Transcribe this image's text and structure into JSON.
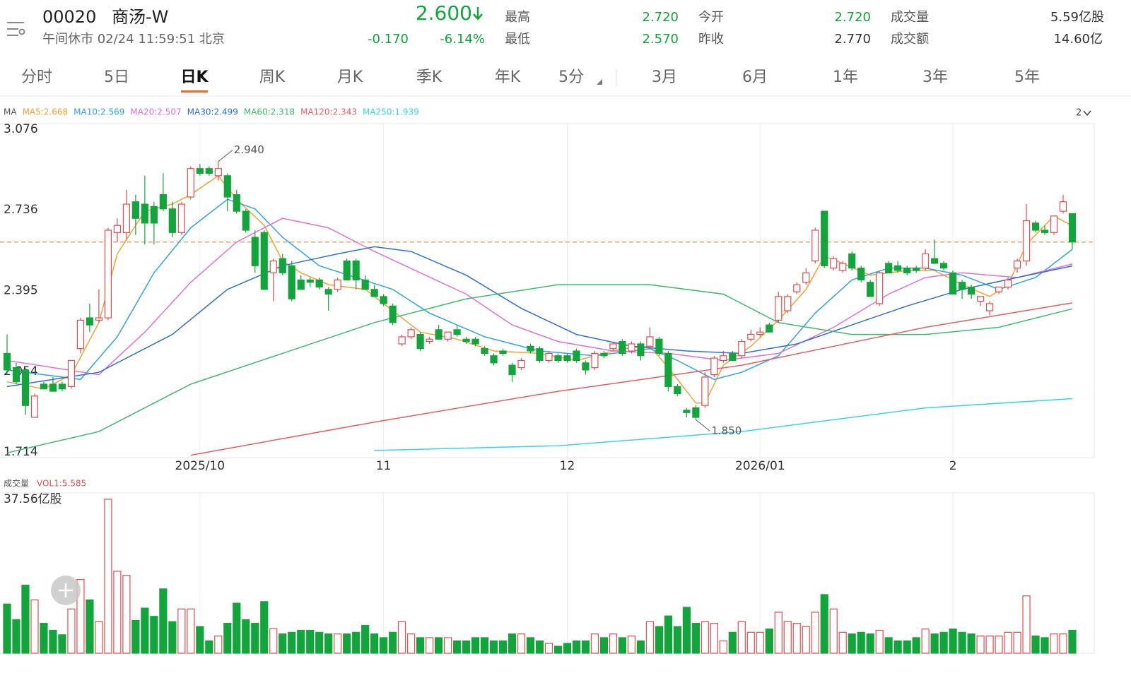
{
  "header": {
    "code": "00020",
    "name": "商汤-W",
    "status": "午间休市 02/24 11:59:51 北京",
    "price": "2.600",
    "change": "-0.170",
    "change_pct": "-6.14%",
    "stats": [
      {
        "label": "最高",
        "value": "2.720"
      },
      {
        "label": "最低",
        "value": "2.570"
      },
      {
        "label": "今开",
        "value": "2.720"
      },
      {
        "label": "昨收",
        "value": "2.770"
      },
      {
        "label": "成交量",
        "value": "5.59亿股"
      },
      {
        "label": "成交额",
        "value": "14.60亿"
      }
    ]
  },
  "tabs": [
    "分时",
    "5日",
    "日K",
    "周K",
    "月K",
    "季K",
    "年K",
    "5分",
    "3月",
    "6月",
    "1年",
    "3年",
    "5年"
  ],
  "active_tab": 2,
  "chart_data": [
    {
      "type": "candlestick",
      "legend_title": "MA",
      "layout_label": "2",
      "categories": [
        null,
        null,
        null,
        null,
        null,
        null,
        null,
        null,
        null,
        null,
        null,
        null,
        null,
        null,
        null,
        null,
        null,
        null,
        null,
        null,
        null,
        "2025/10",
        null,
        null,
        null,
        null,
        null,
        null,
        null,
        null,
        null,
        null,
        null,
        null,
        null,
        null,
        null,
        null,
        null,
        null,
        null,
        "11",
        null,
        null,
        null,
        null,
        null,
        null,
        null,
        null,
        null,
        null,
        null,
        null,
        null,
        null,
        null,
        null,
        null,
        null,
        null,
        "12",
        null,
        null,
        null,
        null,
        null,
        null,
        null,
        null,
        null,
        null,
        null,
        null,
        null,
        null,
        null,
        null,
        null,
        null,
        null,
        null,
        "2026/01",
        null,
        null,
        null,
        null,
        null,
        null,
        null,
        null,
        null,
        null,
        null,
        null,
        null,
        null,
        null,
        null,
        null,
        null,
        null,
        null,
        "2",
        null,
        null,
        null,
        null,
        null,
        null,
        null,
        null,
        null,
        null,
        null,
        null,
        null
      ],
      "open": [
        2.13,
        2.07,
        2.06,
        1.86,
        2.0,
        2.0,
        2.0,
        1.99,
        2.15,
        2.28,
        2.27,
        2.28,
        2.64,
        2.64,
        2.77,
        2.76,
        2.75,
        2.8,
        2.74,
        2.64,
        2.79,
        2.91,
        2.91,
        2.88,
        2.88,
        2.8,
        2.73,
        2.62,
        2.64,
        2.47,
        2.53,
        2.5,
        2.44,
        2.44,
        2.44,
        2.4,
        2.4,
        2.52,
        2.52,
        2.44,
        2.4,
        2.37,
        2.33,
        2.17,
        2.2,
        2.21,
        2.18,
        2.23,
        2.19,
        2.23,
        2.19,
        2.19,
        2.15,
        2.12,
        2.14,
        2.08,
        2.07,
        2.16,
        2.15,
        2.1,
        2.12,
        2.12,
        2.14,
        2.09,
        2.07,
        2.13,
        2.15,
        2.18,
        2.14,
        2.17,
        2.16,
        2.19,
        2.13,
        1.99,
        1.89,
        1.9,
        1.91,
        2.04,
        2.1,
        2.13,
        2.12,
        2.19,
        2.21,
        2.25,
        2.27,
        2.31,
        2.39,
        2.43,
        2.52,
        2.73,
        2.49,
        2.48,
        2.55,
        2.49,
        2.43,
        2.34,
        2.51,
        2.5,
        2.49,
        2.49,
        2.49,
        2.53,
        2.51,
        2.47,
        2.43,
        2.41,
        2.35,
        2.31,
        2.39,
        2.41,
        2.49,
        2.52,
        2.68,
        2.65,
        2.64,
        2.73,
        2.72
      ],
      "high": [
        2.21,
        2.09,
        2.07,
        1.96,
        2.01,
        2.03,
        2.01,
        2.1,
        2.28,
        2.34,
        2.4,
        2.66,
        2.7,
        2.82,
        2.8,
        2.88,
        2.77,
        2.89,
        2.77,
        2.77,
        2.92,
        2.93,
        2.92,
        2.94,
        2.89,
        2.82,
        2.74,
        2.65,
        2.65,
        2.53,
        2.55,
        2.52,
        2.46,
        2.45,
        2.45,
        2.41,
        2.45,
        2.53,
        2.53,
        2.46,
        2.42,
        2.38,
        2.34,
        2.21,
        2.24,
        2.22,
        2.2,
        2.25,
        2.22,
        2.25,
        2.2,
        2.2,
        2.16,
        2.13,
        2.15,
        2.09,
        2.11,
        2.17,
        2.16,
        2.14,
        2.13,
        2.13,
        2.15,
        2.1,
        2.14,
        2.14,
        2.18,
        2.19,
        2.18,
        2.18,
        2.24,
        2.2,
        2.14,
        2.0,
        1.9,
        1.91,
        2.05,
        2.12,
        2.14,
        2.14,
        2.19,
        2.23,
        2.24,
        2.26,
        2.39,
        2.38,
        2.43,
        2.49,
        2.66,
        2.73,
        2.54,
        2.52,
        2.56,
        2.5,
        2.44,
        2.48,
        2.52,
        2.52,
        2.5,
        2.5,
        2.57,
        2.61,
        2.52,
        2.48,
        2.44,
        2.42,
        2.37,
        2.35,
        2.41,
        2.45,
        2.53,
        2.76,
        2.69,
        2.67,
        2.71,
        2.8,
        2.72
      ],
      "low": [
        2.04,
        2.0,
        1.87,
        1.86,
        1.98,
        1.97,
        1.97,
        1.98,
        2.13,
        2.22,
        2.26,
        2.27,
        2.6,
        2.61,
        2.63,
        2.59,
        2.59,
        2.73,
        2.62,
        2.63,
        2.78,
        2.88,
        2.88,
        2.86,
        2.73,
        2.72,
        2.64,
        2.47,
        2.4,
        2.35,
        2.46,
        2.35,
        2.4,
        2.41,
        2.4,
        2.31,
        2.39,
        2.44,
        2.4,
        2.4,
        2.37,
        2.33,
        2.25,
        2.16,
        2.19,
        2.14,
        2.17,
        2.19,
        2.18,
        2.2,
        2.17,
        2.16,
        2.12,
        2.08,
        2.12,
        2.01,
        2.06,
        2.13,
        2.09,
        2.09,
        2.09,
        2.09,
        2.09,
        2.04,
        2.06,
        2.11,
        2.14,
        2.12,
        2.13,
        2.1,
        2.15,
        2.12,
        1.97,
        1.95,
        1.86,
        1.85,
        1.9,
        2.03,
        2.09,
        2.1,
        2.11,
        2.18,
        2.2,
        2.22,
        2.26,
        2.3,
        2.38,
        2.42,
        2.51,
        2.49,
        2.48,
        2.47,
        2.48,
        2.43,
        2.37,
        2.33,
        2.47,
        2.47,
        2.46,
        2.47,
        2.48,
        2.51,
        2.48,
        2.38,
        2.36,
        2.36,
        2.33,
        2.29,
        2.38,
        2.4,
        2.47,
        2.5,
        2.64,
        2.63,
        2.63,
        2.72,
        2.57
      ],
      "close": [
        2.06,
        2.01,
        1.91,
        1.95,
        1.98,
        1.97,
        1.98,
        2.1,
        2.27,
        2.25,
        2.28,
        2.65,
        2.67,
        2.76,
        2.7,
        2.68,
        2.68,
        2.74,
        2.64,
        2.76,
        2.91,
        2.89,
        2.89,
        2.91,
        2.79,
        2.73,
        2.65,
        2.5,
        2.4,
        2.52,
        2.47,
        2.36,
        2.4,
        2.43,
        2.41,
        2.38,
        2.44,
        2.44,
        2.44,
        2.4,
        2.37,
        2.34,
        2.26,
        2.2,
        2.23,
        2.15,
        2.19,
        2.19,
        2.22,
        2.21,
        2.18,
        2.17,
        2.13,
        2.09,
        2.13,
        2.04,
        2.1,
        2.14,
        2.1,
        2.13,
        2.1,
        2.1,
        2.1,
        2.06,
        2.13,
        2.12,
        2.17,
        2.13,
        2.17,
        2.12,
        2.2,
        2.13,
        1.99,
        1.96,
        1.88,
        1.86,
        2.03,
        2.11,
        2.12,
        2.1,
        2.18,
        2.21,
        2.22,
        2.22,
        2.37,
        2.37,
        2.42,
        2.47,
        2.65,
        2.5,
        2.53,
        2.51,
        2.49,
        2.44,
        2.37,
        2.47,
        2.47,
        2.48,
        2.47,
        2.48,
        2.55,
        2.51,
        2.49,
        2.38,
        2.4,
        2.38,
        2.37,
        2.34,
        2.41,
        2.44,
        2.52,
        2.69,
        2.65,
        2.64,
        2.71,
        2.77,
        2.6
      ],
      "up_color": "#e94b4b",
      "down_color": "#12a53c",
      "ylim": [
        1.69,
        3.1
      ],
      "yticks": [
        1.714,
        2.054,
        2.395,
        2.736,
        3.076
      ],
      "grid": false,
      "price_line": 2.6,
      "price_line_color": "#f2a36b",
      "annotations": [
        {
          "x": 23,
          "value": 2.94,
          "label": "2.940"
        },
        {
          "x": 75,
          "value": 1.85,
          "label": "1.850"
        }
      ],
      "series": [
        {
          "name": "MA5:2.668",
          "color": "#f5a030",
          "x": [
            0,
            4,
            7,
            10,
            12,
            15,
            18,
            20,
            23,
            25,
            28,
            30,
            32,
            35,
            39,
            42,
            45,
            49,
            53,
            58,
            62,
            67,
            70,
            72,
            75,
            76,
            78,
            81,
            84,
            87,
            89,
            91,
            94,
            98,
            101,
            104,
            107,
            109,
            111,
            114,
            116
          ],
          "values": [
            2.01,
            1.98,
            2.04,
            2.26,
            2.55,
            2.73,
            2.76,
            2.8,
            2.88,
            2.78,
            2.67,
            2.52,
            2.47,
            2.42,
            2.4,
            2.31,
            2.22,
            2.19,
            2.14,
            2.13,
            2.1,
            2.15,
            2.16,
            2.07,
            1.92,
            1.92,
            2.08,
            2.16,
            2.27,
            2.4,
            2.54,
            2.51,
            2.46,
            2.48,
            2.48,
            2.42,
            2.37,
            2.42,
            2.59,
            2.71,
            2.668
          ]
        },
        {
          "name": "MA10:2.569",
          "color": "#2ea3e8",
          "x": [
            0,
            8,
            12,
            16,
            20,
            24,
            27,
            30,
            34,
            38,
            42,
            46,
            52,
            58,
            64,
            70,
            73,
            77,
            80,
            84,
            88,
            92,
            96,
            100,
            104,
            108,
            112,
            116
          ],
          "values": [
            2.06,
            2.02,
            2.2,
            2.47,
            2.66,
            2.78,
            2.74,
            2.62,
            2.5,
            2.45,
            2.4,
            2.3,
            2.2,
            2.14,
            2.12,
            2.15,
            2.1,
            2.02,
            2.05,
            2.12,
            2.3,
            2.44,
            2.49,
            2.49,
            2.46,
            2.4,
            2.45,
            2.569
          ]
        },
        {
          "name": "MA20:2.507",
          "color": "#e070d6",
          "x": [
            0,
            10,
            15,
            20,
            25,
            30,
            35,
            40,
            45,
            50,
            55,
            60,
            66,
            72,
            78,
            84,
            90,
            96,
            100,
            104,
            110,
            116
          ],
          "values": [
            2.1,
            2.04,
            2.22,
            2.43,
            2.6,
            2.7,
            2.66,
            2.56,
            2.47,
            2.38,
            2.25,
            2.18,
            2.14,
            2.13,
            2.1,
            2.13,
            2.24,
            2.38,
            2.45,
            2.47,
            2.45,
            2.507
          ]
        },
        {
          "name": "MA30:2.499",
          "color": "#2f6fd6",
          "x": [
            0,
            10,
            18,
            24,
            30,
            36,
            40,
            44,
            50,
            56,
            62,
            68,
            74,
            80,
            86,
            92,
            98,
            104,
            110,
            116
          ],
          "values": [
            1.99,
            2.05,
            2.21,
            2.4,
            2.5,
            2.55,
            2.58,
            2.56,
            2.46,
            2.32,
            2.21,
            2.16,
            2.14,
            2.13,
            2.17,
            2.25,
            2.33,
            2.4,
            2.45,
            2.499
          ]
        },
        {
          "name": "MA60:2.318",
          "color": "#3fba6d",
          "x": [
            0,
            10,
            20,
            30,
            40,
            50,
            60,
            70,
            78,
            84,
            92,
            100,
            108,
            116
          ],
          "values": [
            1.71,
            1.8,
            2.0,
            2.13,
            2.26,
            2.36,
            2.42,
            2.42,
            2.38,
            2.26,
            2.21,
            2.21,
            2.24,
            2.318
          ]
        },
        {
          "name": "MA120:2.343",
          "color": "#e85d5d",
          "x": [
            20,
            40,
            60,
            80,
            100,
            116
          ],
          "values": [
            1.7,
            1.84,
            1.97,
            2.08,
            2.24,
            2.343
          ]
        },
        {
          "name": "MA250:1.939",
          "color": "#33d6e6",
          "x": [
            40,
            60,
            80,
            100,
            116
          ],
          "values": [
            1.72,
            1.74,
            1.8,
            1.9,
            1.939
          ]
        }
      ]
    },
    {
      "type": "bar",
      "title": "成交量",
      "legend": "VOL1:5.585",
      "values": [
        12,
        8.2,
        16.6,
        13,
        7.3,
        5.6,
        4.5,
        10.8,
        18,
        13,
        7.7,
        37.56,
        20,
        19,
        8,
        11,
        9,
        15.7,
        7.7,
        10.8,
        10.8,
        6.5,
        3,
        4.2,
        7.3,
        12.2,
        8.2,
        7.3,
        12.6,
        6,
        4.7,
        5.1,
        5.6,
        5.6,
        5.1,
        4.7,
        4.7,
        4.7,
        5.1,
        6.8,
        4.7,
        3.8,
        5.1,
        7.7,
        4.7,
        3.8,
        3.8,
        3.8,
        3.8,
        3.0,
        3.0,
        3.8,
        3.8,
        3.0,
        3.0,
        4.7,
        4.7,
        3.8,
        3.0,
        2.4,
        1.7,
        2.4,
        3.0,
        3.0,
        4.7,
        3.8,
        4.7,
        3.8,
        4.2,
        3.0,
        7.7,
        6.5,
        9.1,
        6.5,
        11.2,
        7.3,
        7.7,
        7.3,
        3.0,
        5.1,
        7.7,
        5.1,
        5.1,
        5.9,
        10,
        7.7,
        7.3,
        6.5,
        10,
        14.3,
        10.8,
        5.1,
        4.7,
        5.1,
        4.7,
        5.6,
        3.8,
        3.0,
        3.0,
        3.8,
        5.9,
        4.7,
        5.1,
        5.9,
        5.1,
        4.7,
        4.2,
        4.2,
        4.2,
        5.1,
        5.1,
        14,
        4.2,
        3.8,
        4.7,
        4.7,
        5.59
      ],
      "ylim": [
        0,
        39.1
      ],
      "yticks": [
        {
          "value": 37.56,
          "label": "37.56亿股"
        }
      ]
    }
  ]
}
